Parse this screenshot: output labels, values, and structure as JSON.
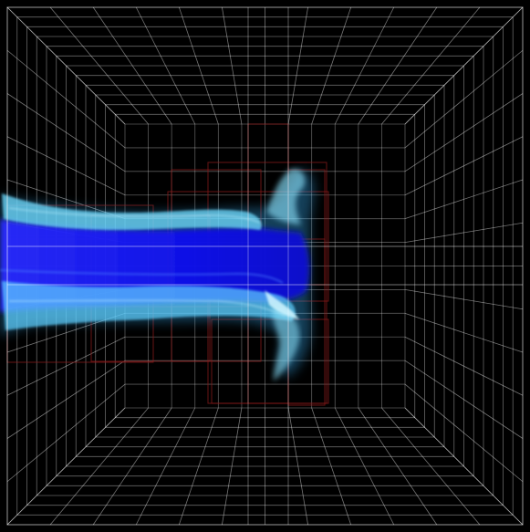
{
  "scene": {
    "background_color": "#000000",
    "grid_color": "#ffffff",
    "grid_divisions": 12,
    "block_outline_color": "#8b1a1a",
    "jet_core_color": "#1414ff",
    "jet_shell_color": "#5fd4ff",
    "jet_highlight_color": "#c8f4ff",
    "icons": [
      "volume-grid",
      "refinement-blocks",
      "fluid-jet"
    ]
  }
}
